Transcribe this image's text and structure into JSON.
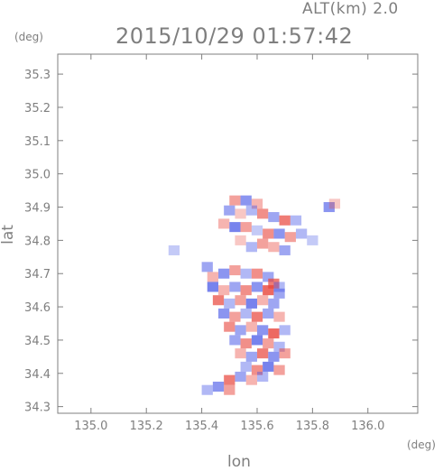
{
  "header": {
    "alt_label": "ALT(km) 2.0",
    "timestamp": "2015/10/29 01:57:42"
  },
  "chart_data": {
    "type": "heatmap",
    "title": "2015/10/29 01:57:42",
    "xlabel": "lon",
    "ylabel": "lat",
    "x_unit": "(deg)",
    "y_unit": "(deg)",
    "xlim": [
      134.88,
      136.18
    ],
    "ylim": [
      34.28,
      35.36
    ],
    "xticks": [
      135.0,
      135.2,
      135.4,
      135.6,
      135.8,
      136.0
    ],
    "xtick_labels": [
      "135.0",
      "135.2",
      "135.4",
      "135.6",
      "135.8",
      "136.0"
    ],
    "yticks": [
      34.3,
      34.4,
      34.5,
      34.6,
      34.7,
      34.8,
      34.9,
      35.0,
      35.1,
      35.2,
      35.3
    ],
    "ytick_labels": [
      "34.3",
      "34.4",
      "34.5",
      "34.6",
      "34.7",
      "34.8",
      "34.9",
      "35.0",
      "35.1",
      "35.2",
      "35.3"
    ],
    "colors": {
      "positive": "#e8443a",
      "negative": "#3d4ee6",
      "axis": "#7f7f7f"
    },
    "cells": [
      [
        135.52,
        34.92,
        0.5
      ],
      [
        135.56,
        34.92,
        -0.6
      ],
      [
        135.6,
        34.91,
        0.4
      ],
      [
        135.5,
        34.89,
        -0.5
      ],
      [
        135.54,
        34.88,
        0.3
      ],
      [
        135.58,
        34.89,
        -0.4
      ],
      [
        135.62,
        34.88,
        0.6
      ],
      [
        135.66,
        34.87,
        -0.5
      ],
      [
        135.7,
        34.86,
        0.7
      ],
      [
        135.74,
        34.86,
        -0.4
      ],
      [
        135.86,
        34.9,
        -0.6
      ],
      [
        135.88,
        34.91,
        0.3
      ],
      [
        135.48,
        34.85,
        0.4
      ],
      [
        135.52,
        34.84,
        -0.7
      ],
      [
        135.56,
        34.84,
        0.5
      ],
      [
        135.6,
        34.83,
        -0.3
      ],
      [
        135.64,
        34.82,
        0.6
      ],
      [
        135.68,
        34.82,
        -0.6
      ],
      [
        135.72,
        34.81,
        0.5
      ],
      [
        135.76,
        34.82,
        -0.4
      ],
      [
        135.8,
        34.8,
        -0.3
      ],
      [
        135.66,
        34.78,
        0.4
      ],
      [
        135.7,
        34.77,
        -0.5
      ],
      [
        135.58,
        34.78,
        -0.4
      ],
      [
        135.62,
        34.79,
        0.5
      ],
      [
        135.54,
        34.8,
        0.3
      ],
      [
        135.3,
        34.77,
        -0.3
      ],
      [
        135.42,
        34.72,
        -0.5
      ],
      [
        135.44,
        34.69,
        0.4
      ],
      [
        135.48,
        34.7,
        -0.6
      ],
      [
        135.52,
        34.71,
        0.5
      ],
      [
        135.56,
        34.7,
        -0.4
      ],
      [
        135.6,
        34.7,
        0.6
      ],
      [
        135.64,
        34.69,
        -0.5
      ],
      [
        135.66,
        34.67,
        0.7
      ],
      [
        135.68,
        34.66,
        -0.4
      ],
      [
        135.44,
        34.66,
        -0.7
      ],
      [
        135.48,
        34.65,
        0.4
      ],
      [
        135.52,
        34.66,
        -0.5
      ],
      [
        135.56,
        34.65,
        0.6
      ],
      [
        135.6,
        34.66,
        -0.6
      ],
      [
        135.64,
        34.65,
        0.8
      ],
      [
        135.68,
        34.64,
        -0.5
      ],
      [
        135.46,
        34.62,
        0.7
      ],
      [
        135.5,
        34.61,
        -0.4
      ],
      [
        135.54,
        34.62,
        0.5
      ],
      [
        135.58,
        34.61,
        -0.7
      ],
      [
        135.62,
        34.62,
        0.4
      ],
      [
        135.66,
        34.61,
        -0.5
      ],
      [
        135.48,
        34.58,
        -0.6
      ],
      [
        135.52,
        34.57,
        0.5
      ],
      [
        135.56,
        34.58,
        -0.4
      ],
      [
        135.6,
        34.57,
        0.7
      ],
      [
        135.64,
        34.58,
        -0.5
      ],
      [
        135.68,
        34.57,
        0.4
      ],
      [
        135.5,
        34.54,
        0.6
      ],
      [
        135.54,
        34.53,
        -0.5
      ],
      [
        135.58,
        34.54,
        0.4
      ],
      [
        135.62,
        34.53,
        -0.6
      ],
      [
        135.66,
        34.52,
        0.8
      ],
      [
        135.7,
        34.53,
        -0.4
      ],
      [
        135.52,
        34.5,
        -0.5
      ],
      [
        135.56,
        34.49,
        0.6
      ],
      [
        135.6,
        34.5,
        -0.7
      ],
      [
        135.64,
        34.49,
        0.5
      ],
      [
        135.68,
        34.48,
        -0.4
      ],
      [
        135.54,
        34.46,
        0.4
      ],
      [
        135.58,
        34.45,
        -0.5
      ],
      [
        135.62,
        34.46,
        0.7
      ],
      [
        135.66,
        34.45,
        -0.6
      ],
      [
        135.7,
        34.46,
        0.5
      ],
      [
        135.56,
        34.42,
        -0.4
      ],
      [
        135.6,
        34.41,
        0.6
      ],
      [
        135.64,
        34.42,
        -0.7
      ],
      [
        135.68,
        34.41,
        0.5
      ],
      [
        135.5,
        34.38,
        0.7
      ],
      [
        135.54,
        34.39,
        -0.5
      ],
      [
        135.58,
        34.38,
        0.4
      ],
      [
        135.62,
        34.39,
        -0.4
      ],
      [
        135.46,
        34.36,
        -0.6
      ],
      [
        135.5,
        34.35,
        0.5
      ],
      [
        135.42,
        34.35,
        -0.4
      ]
    ]
  }
}
